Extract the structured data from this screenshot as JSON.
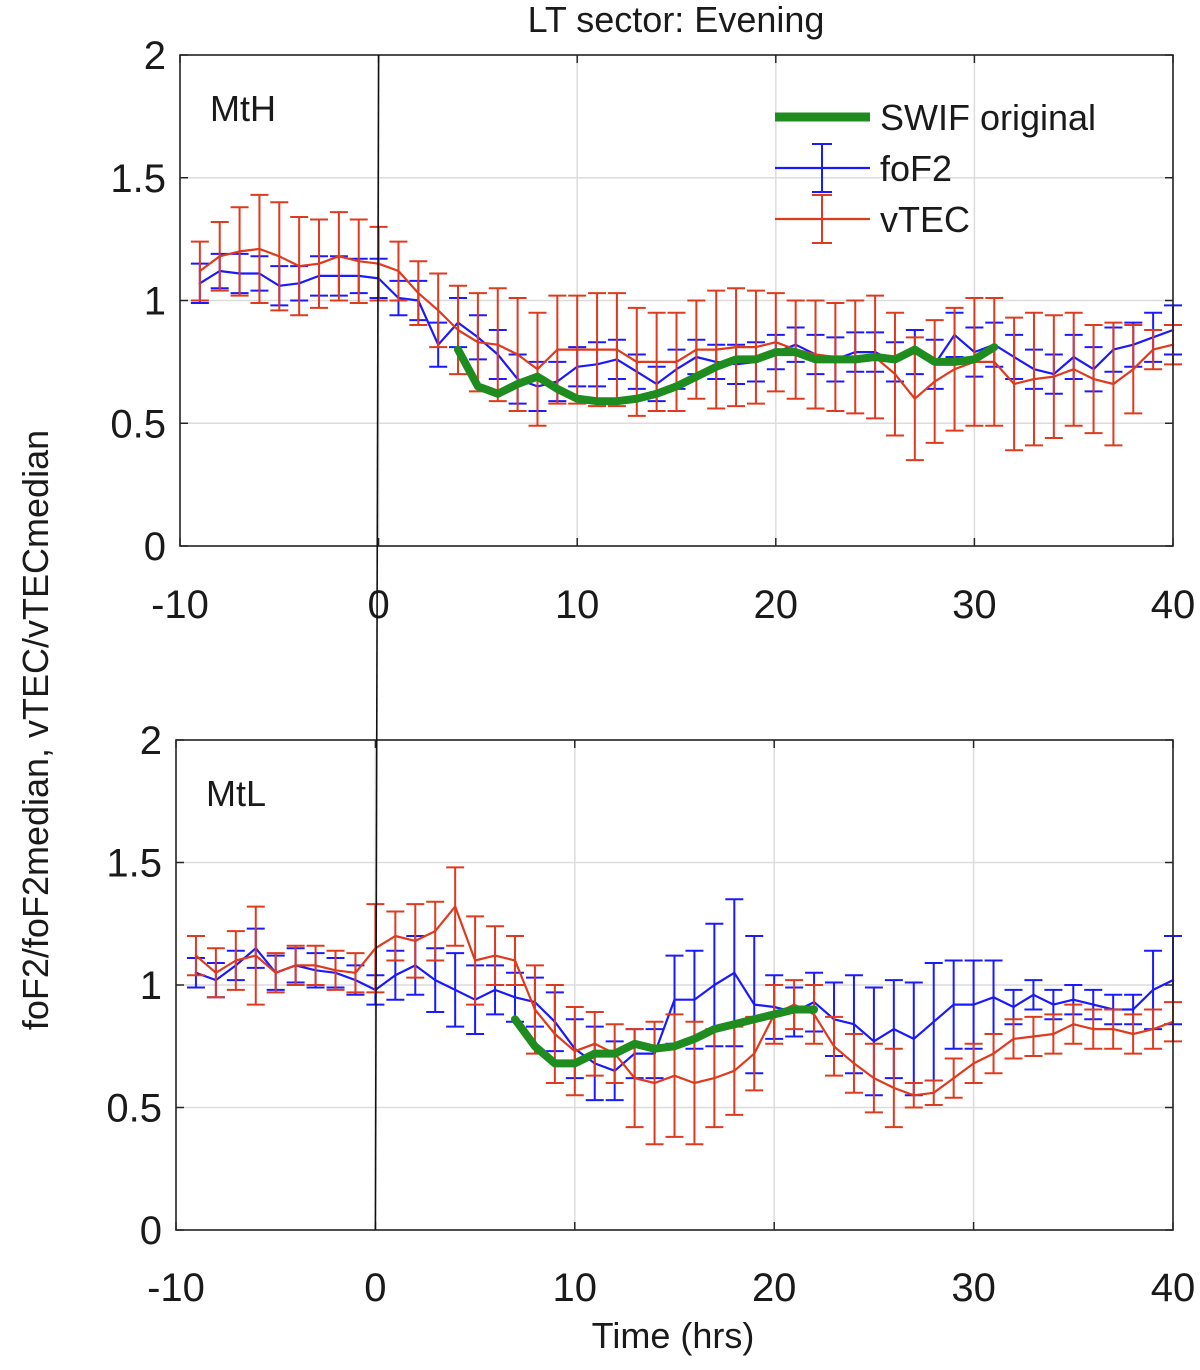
{
  "figure": {
    "title": "LT sector: Evening",
    "ylabel": "foF2/foF2median, vTEC/vTECmedian",
    "xlabel": "Time (hrs)"
  },
  "legend": [
    {
      "label": "SWIF original",
      "color": "#1e8c1e",
      "icon": "thick-line-icon"
    },
    {
      "label": "foF2",
      "color": "#1a1aff",
      "icon": "errorbar-line-icon"
    },
    {
      "label": "vTEC",
      "color": "#e03a1e",
      "icon": "errorbar-line-icon"
    }
  ],
  "colors": {
    "swif": "#1e8c1e",
    "foF2": "#1a1aff",
    "vTEC": "#e03a1e",
    "grid": "#dcdcdc",
    "median_cap": "#f0b8b8"
  },
  "chart_data": [
    {
      "type": "line",
      "panel": "MtH",
      "xlim": [
        -10,
        40
      ],
      "ylim": [
        0,
        2
      ],
      "xticks": [
        "-10",
        "0",
        "10",
        "20",
        "30",
        "40"
      ],
      "yticks": [
        "0",
        "0.5",
        "1",
        "1.5",
        "2"
      ],
      "grid": true,
      "vline_x": 0,
      "legend_position": "top-right",
      "series": [
        {
          "name": "foF2",
          "x": [
            -9,
            -8,
            -7,
            -6,
            -5,
            -4,
            -3,
            -2,
            -1,
            0,
            1,
            2,
            3,
            4,
            5,
            6,
            7,
            8,
            9,
            10,
            11,
            12,
            13,
            14,
            15,
            16,
            17,
            18,
            19,
            20,
            21,
            22,
            23,
            24,
            25,
            26,
            27,
            28,
            29,
            30,
            31,
            32,
            33,
            34,
            35,
            36,
            37,
            38,
            39,
            40
          ],
          "y": [
            1.07,
            1.12,
            1.11,
            1.11,
            1.06,
            1.07,
            1.1,
            1.1,
            1.1,
            1.09,
            1.01,
            1.0,
            0.82,
            0.91,
            0.85,
            0.78,
            0.68,
            0.65,
            0.67,
            0.73,
            0.74,
            0.76,
            0.71,
            0.66,
            0.72,
            0.77,
            0.75,
            0.74,
            0.75,
            0.79,
            0.82,
            0.78,
            0.76,
            0.79,
            0.79,
            0.75,
            0.79,
            0.74,
            0.86,
            0.79,
            0.82,
            0.77,
            0.72,
            0.7,
            0.77,
            0.72,
            0.8,
            0.82,
            0.85,
            0.88
          ],
          "err": [
            0.08,
            0.07,
            0.08,
            0.07,
            0.08,
            0.07,
            0.08,
            0.08,
            0.07,
            0.08,
            0.07,
            0.08,
            0.09,
            0.1,
            0.09,
            0.1,
            0.1,
            0.1,
            0.08,
            0.08,
            0.09,
            0.08,
            0.07,
            0.07,
            0.08,
            0.07,
            0.07,
            0.08,
            0.08,
            0.07,
            0.07,
            0.08,
            0.09,
            0.08,
            0.08,
            0.08,
            0.09,
            0.1,
            0.09,
            0.1,
            0.09,
            0.09,
            0.08,
            0.08,
            0.09,
            0.09,
            0.09,
            0.09,
            0.1,
            0.1
          ]
        },
        {
          "name": "vTEC",
          "x": [
            -9,
            -8,
            -7,
            -6,
            -5,
            -4,
            -3,
            -2,
            -1,
            0,
            1,
            2,
            3,
            4,
            5,
            6,
            7,
            8,
            9,
            10,
            11,
            12,
            13,
            14,
            15,
            16,
            17,
            18,
            19,
            20,
            21,
            22,
            23,
            24,
            25,
            26,
            27,
            28,
            29,
            30,
            31,
            32,
            33,
            34,
            35,
            36,
            37,
            38,
            39,
            40
          ],
          "y": [
            1.12,
            1.18,
            1.2,
            1.21,
            1.18,
            1.14,
            1.15,
            1.18,
            1.16,
            1.15,
            1.12,
            1.03,
            0.96,
            0.88,
            0.83,
            0.82,
            0.78,
            0.72,
            0.8,
            0.8,
            0.8,
            0.8,
            0.75,
            0.75,
            0.75,
            0.8,
            0.8,
            0.81,
            0.81,
            0.83,
            0.8,
            0.78,
            0.77,
            0.77,
            0.77,
            0.7,
            0.6,
            0.67,
            0.72,
            0.75,
            0.75,
            0.66,
            0.68,
            0.69,
            0.72,
            0.68,
            0.66,
            0.72,
            0.8,
            0.82
          ],
          "err": [
            0.12,
            0.14,
            0.18,
            0.22,
            0.22,
            0.2,
            0.18,
            0.18,
            0.17,
            0.15,
            0.12,
            0.13,
            0.15,
            0.18,
            0.2,
            0.23,
            0.23,
            0.23,
            0.22,
            0.22,
            0.23,
            0.23,
            0.22,
            0.2,
            0.2,
            0.2,
            0.24,
            0.24,
            0.23,
            0.2,
            0.2,
            0.22,
            0.22,
            0.23,
            0.25,
            0.25,
            0.25,
            0.25,
            0.25,
            0.26,
            0.26,
            0.27,
            0.27,
            0.25,
            0.23,
            0.22,
            0.25,
            0.18,
            0.08,
            0.08
          ]
        },
        {
          "name": "SWIF original",
          "x": [
            4,
            5,
            6,
            7,
            8,
            9,
            10,
            11,
            12,
            13,
            14,
            15,
            16,
            17,
            18,
            19,
            20,
            21,
            22,
            23,
            24,
            25,
            26,
            27,
            28,
            29,
            30,
            31
          ],
          "y": [
            0.8,
            0.65,
            0.62,
            0.66,
            0.69,
            0.64,
            0.6,
            0.59,
            0.59,
            0.6,
            0.62,
            0.65,
            0.69,
            0.73,
            0.76,
            0.76,
            0.79,
            0.79,
            0.76,
            0.76,
            0.76,
            0.77,
            0.76,
            0.8,
            0.75,
            0.75,
            0.76,
            0.81
          ]
        }
      ]
    },
    {
      "type": "line",
      "panel": "MtL",
      "xlim": [
        -10,
        40
      ],
      "ylim": [
        0,
        2
      ],
      "xticks": [
        "-10",
        "0",
        "10",
        "20",
        "30",
        "40"
      ],
      "yticks": [
        "0",
        "0.5",
        "1",
        "1.5",
        "2"
      ],
      "grid": true,
      "vline_x": 0,
      "series": [
        {
          "name": "foF2",
          "x": [
            -9,
            -8,
            -7,
            -6,
            -5,
            -4,
            -3,
            -2,
            -1,
            0,
            1,
            2,
            3,
            4,
            5,
            6,
            7,
            8,
            9,
            10,
            11,
            12,
            13,
            14,
            15,
            16,
            17,
            18,
            19,
            20,
            21,
            22,
            23,
            24,
            25,
            26,
            27,
            28,
            29,
            30,
            31,
            32,
            33,
            34,
            35,
            36,
            37,
            38,
            39,
            40
          ],
          "y": [
            1.05,
            1.02,
            1.08,
            1.15,
            1.05,
            1.08,
            1.06,
            1.05,
            1.02,
            0.98,
            1.04,
            1.08,
            1.02,
            0.98,
            0.94,
            0.98,
            0.95,
            0.93,
            0.85,
            0.74,
            0.68,
            0.65,
            0.72,
            0.72,
            0.94,
            0.94,
            1.0,
            1.05,
            0.92,
            0.91,
            0.89,
            0.93,
            0.86,
            0.84,
            0.77,
            0.82,
            0.78,
            0.85,
            0.92,
            0.92,
            0.95,
            0.91,
            0.96,
            0.92,
            0.94,
            0.92,
            0.9,
            0.9,
            0.98,
            1.02
          ],
          "err": [
            0.06,
            0.07,
            0.06,
            0.08,
            0.07,
            0.07,
            0.07,
            0.06,
            0.06,
            0.06,
            0.1,
            0.12,
            0.13,
            0.15,
            0.14,
            0.1,
            0.1,
            0.1,
            0.12,
            0.12,
            0.15,
            0.12,
            0.1,
            0.1,
            0.18,
            0.2,
            0.25,
            0.3,
            0.28,
            0.13,
            0.1,
            0.12,
            0.15,
            0.2,
            0.22,
            0.2,
            0.23,
            0.24,
            0.18,
            0.18,
            0.15,
            0.07,
            0.06,
            0.06,
            0.06,
            0.06,
            0.06,
            0.06,
            0.16,
            0.18
          ]
        },
        {
          "name": "vTEC",
          "x": [
            -9,
            -8,
            -7,
            -6,
            -5,
            -4,
            -3,
            -2,
            -1,
            0,
            1,
            2,
            3,
            4,
            5,
            6,
            7,
            8,
            9,
            10,
            11,
            12,
            13,
            14,
            15,
            16,
            17,
            18,
            19,
            20,
            21,
            22,
            23,
            24,
            25,
            26,
            27,
            28,
            29,
            30,
            31,
            32,
            33,
            34,
            35,
            36,
            37,
            38,
            39,
            40
          ],
          "y": [
            1.12,
            1.05,
            1.1,
            1.12,
            1.05,
            1.08,
            1.08,
            1.06,
            1.05,
            1.15,
            1.2,
            1.18,
            1.22,
            1.32,
            1.1,
            1.12,
            1.1,
            0.9,
            0.8,
            0.73,
            0.76,
            0.72,
            0.62,
            0.6,
            0.63,
            0.6,
            0.62,
            0.65,
            0.72,
            0.88,
            0.92,
            0.88,
            0.75,
            0.68,
            0.62,
            0.58,
            0.55,
            0.56,
            0.62,
            0.68,
            0.72,
            0.78,
            0.79,
            0.8,
            0.84,
            0.82,
            0.82,
            0.8,
            0.82,
            0.85
          ],
          "err": [
            0.08,
            0.1,
            0.12,
            0.2,
            0.08,
            0.08,
            0.08,
            0.08,
            0.08,
            0.18,
            0.1,
            0.15,
            0.12,
            0.16,
            0.18,
            0.12,
            0.1,
            0.18,
            0.2,
            0.18,
            0.13,
            0.12,
            0.2,
            0.25,
            0.25,
            0.25,
            0.2,
            0.18,
            0.15,
            0.12,
            0.1,
            0.12,
            0.12,
            0.12,
            0.14,
            0.16,
            0.05,
            0.05,
            0.08,
            0.08,
            0.08,
            0.08,
            0.08,
            0.08,
            0.08,
            0.08,
            0.08,
            0.08,
            0.08,
            0.08
          ]
        },
        {
          "name": "SWIF original",
          "x": [
            7,
            8,
            9,
            10,
            11,
            12,
            13,
            14,
            15,
            16,
            17,
            18,
            19,
            20,
            21,
            22
          ],
          "y": [
            0.86,
            0.75,
            0.68,
            0.68,
            0.72,
            0.72,
            0.76,
            0.74,
            0.75,
            0.78,
            0.82,
            0.84,
            0.86,
            0.88,
            0.9,
            0.9
          ]
        }
      ]
    }
  ]
}
